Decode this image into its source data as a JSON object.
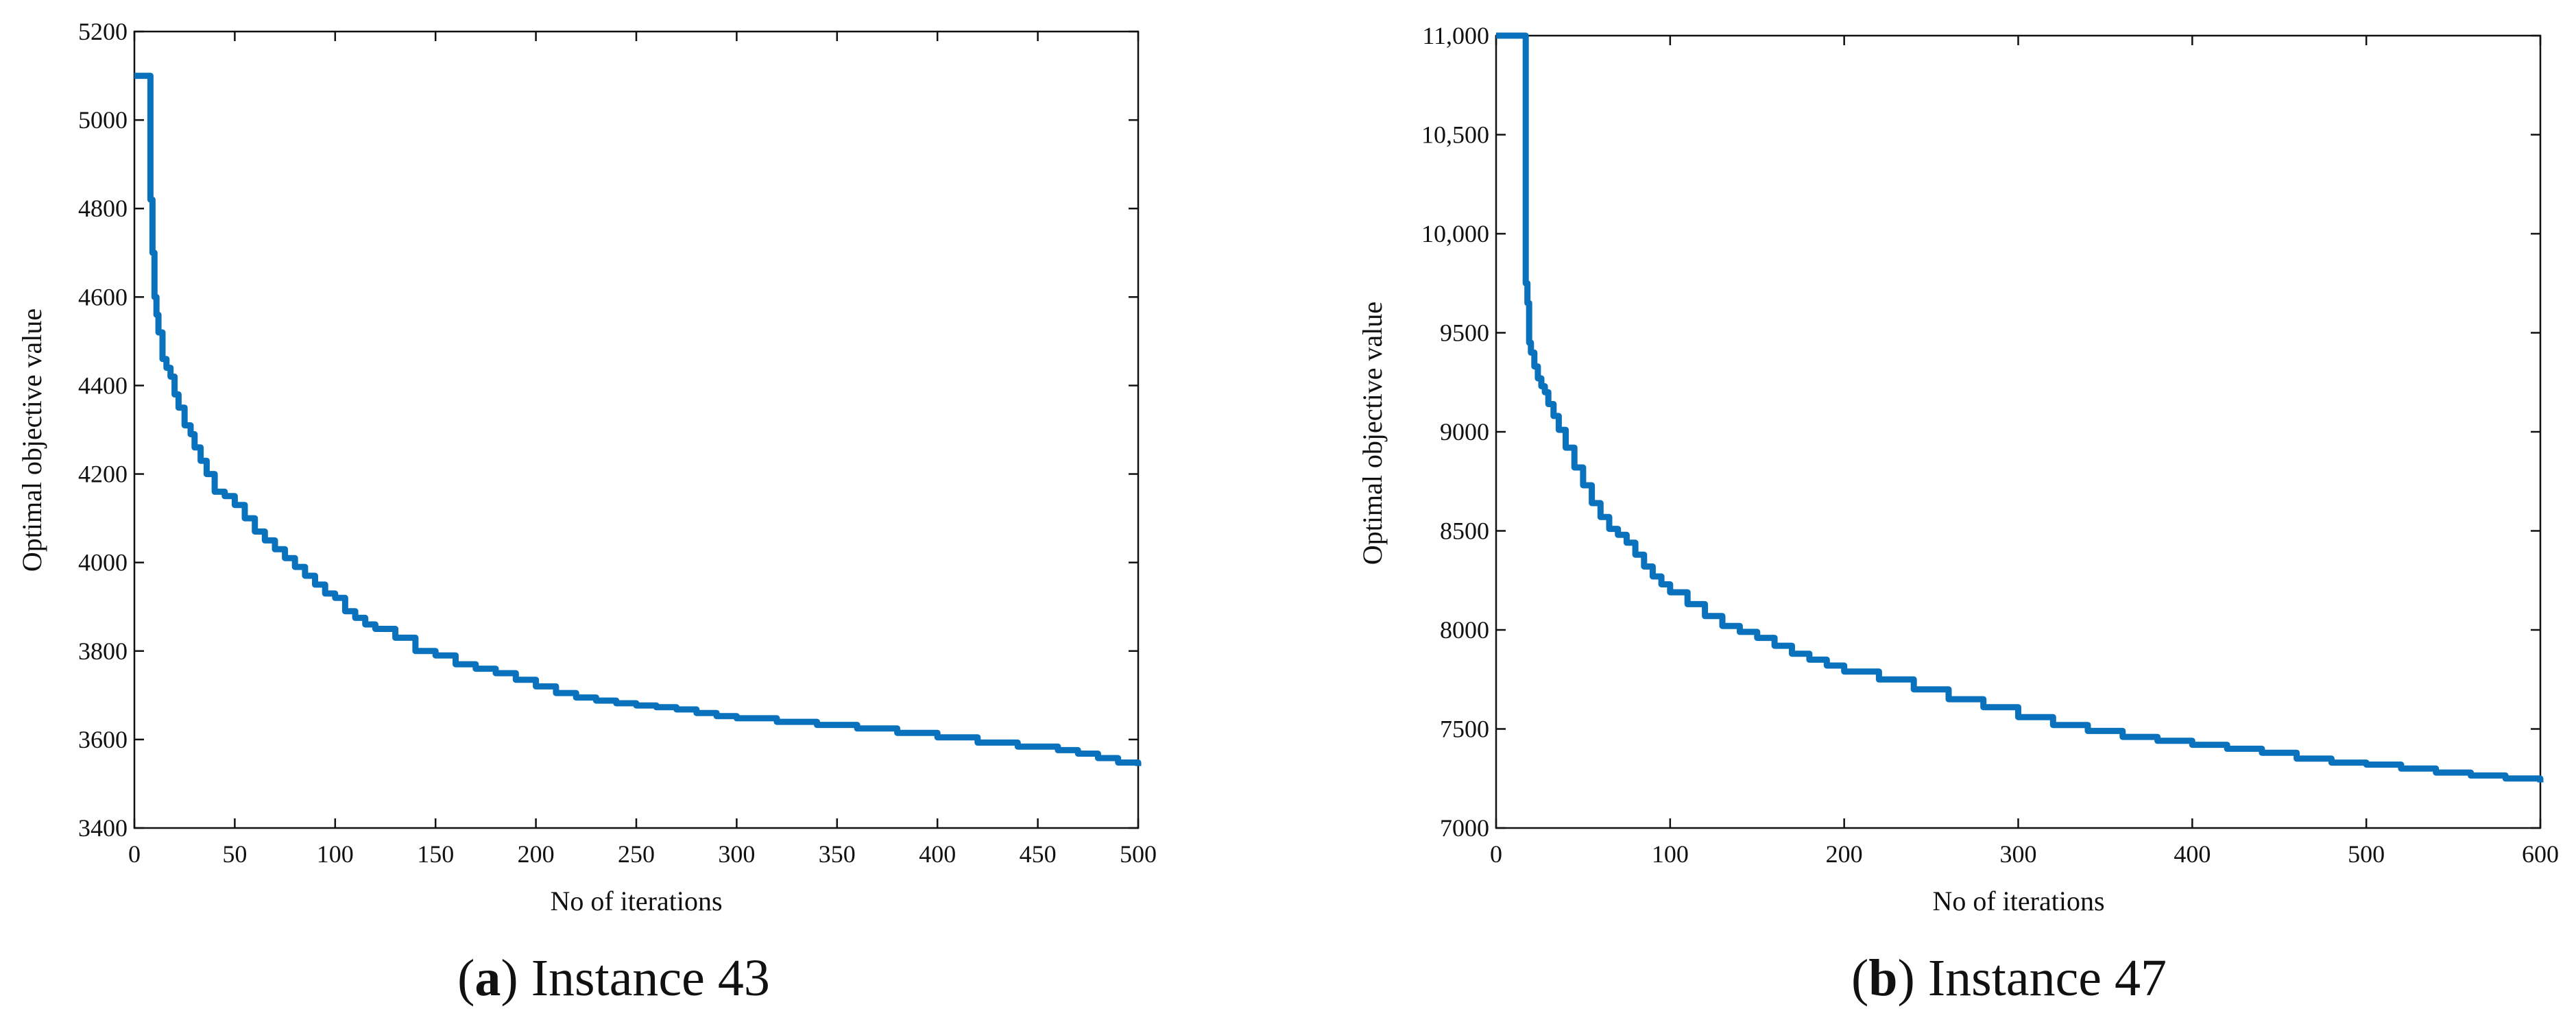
{
  "accent_color": "#0a72bd",
  "chart_data": [
    {
      "type": "line",
      "caption_label": "a",
      "caption_text": "Instance 43",
      "xlabel": "No of iterations",
      "ylabel": "Optimal objective value",
      "xlim": [
        0,
        500
      ],
      "ylim": [
        3400,
        5200
      ],
      "xticks": [
        0,
        50,
        100,
        150,
        200,
        250,
        300,
        350,
        400,
        450,
        500
      ],
      "yticks": [
        3400,
        3600,
        3800,
        4000,
        4200,
        4400,
        4600,
        4800,
        5000,
        5200
      ],
      "xtick_labels": [
        "0",
        "50",
        "100",
        "150",
        "200",
        "250",
        "300",
        "350",
        "400",
        "450",
        "500"
      ],
      "ytick_labels": [
        "3400",
        "3600",
        "3800",
        "4000",
        "4200",
        "4400",
        "4600",
        "4800",
        "5000",
        "5200"
      ],
      "grid": false,
      "series": [
        {
          "color": "#0a72bd",
          "x": [
            0,
            7,
            8,
            9,
            10,
            11,
            12,
            14,
            16,
            18,
            20,
            22,
            25,
            28,
            30,
            33,
            36,
            40,
            45,
            50,
            55,
            60,
            65,
            70,
            75,
            80,
            85,
            90,
            95,
            100,
            105,
            110,
            115,
            120,
            130,
            140,
            150,
            160,
            170,
            180,
            190,
            200,
            210,
            220,
            230,
            240,
            250,
            260,
            270,
            280,
            290,
            300,
            320,
            340,
            360,
            380,
            400,
            420,
            440,
            460,
            470,
            480,
            490,
            500
          ],
          "y": [
            5100,
            5100,
            4820,
            4700,
            4600,
            4560,
            4520,
            4460,
            4440,
            4420,
            4380,
            4350,
            4310,
            4290,
            4260,
            4230,
            4200,
            4160,
            4150,
            4130,
            4100,
            4070,
            4050,
            4030,
            4010,
            3990,
            3970,
            3950,
            3930,
            3920,
            3890,
            3875,
            3860,
            3850,
            3830,
            3800,
            3790,
            3770,
            3760,
            3750,
            3735,
            3720,
            3705,
            3695,
            3688,
            3682,
            3677,
            3673,
            3668,
            3660,
            3653,
            3648,
            3640,
            3633,
            3625,
            3615,
            3605,
            3593,
            3584,
            3576,
            3568,
            3558,
            3548,
            3540
          ]
        }
      ]
    },
    {
      "type": "line",
      "caption_label": "b",
      "caption_text": "Instance 47",
      "xlabel": "No of iterations",
      "ylabel": "Optimal objective value",
      "xlim": [
        0,
        600
      ],
      "ylim": [
        7000,
        11000
      ],
      "xticks": [
        0,
        100,
        200,
        300,
        400,
        500,
        600
      ],
      "yticks": [
        7000,
        7500,
        8000,
        8500,
        9000,
        9500,
        10000,
        10500,
        11000
      ],
      "xtick_labels": [
        "0",
        "100",
        "200",
        "300",
        "400",
        "500",
        "600"
      ],
      "ytick_labels": [
        "7000",
        "7500",
        "8000",
        "8500",
        "9000",
        "9500",
        "10,000",
        "10,500",
        "11,000"
      ],
      "grid": false,
      "series": [
        {
          "color": "#0a72bd",
          "x": [
            0,
            16,
            17,
            18,
            19,
            20,
            22,
            24,
            26,
            28,
            30,
            33,
            36,
            40,
            45,
            50,
            55,
            60,
            65,
            70,
            75,
            80,
            85,
            90,
            95,
            100,
            110,
            120,
            130,
            140,
            150,
            160,
            170,
            180,
            190,
            200,
            220,
            240,
            260,
            280,
            300,
            320,
            340,
            360,
            380,
            400,
            420,
            440,
            460,
            480,
            500,
            520,
            540,
            560,
            580,
            600
          ],
          "y": [
            11000,
            11000,
            9750,
            9650,
            9450,
            9400,
            9330,
            9270,
            9230,
            9200,
            9140,
            9080,
            9010,
            8920,
            8820,
            8730,
            8640,
            8570,
            8510,
            8480,
            8440,
            8380,
            8320,
            8270,
            8230,
            8190,
            8130,
            8070,
            8020,
            7990,
            7960,
            7920,
            7880,
            7850,
            7820,
            7790,
            7750,
            7700,
            7650,
            7610,
            7560,
            7520,
            7490,
            7460,
            7440,
            7420,
            7400,
            7380,
            7350,
            7330,
            7320,
            7300,
            7280,
            7265,
            7250,
            7230
          ]
        }
      ]
    }
  ]
}
